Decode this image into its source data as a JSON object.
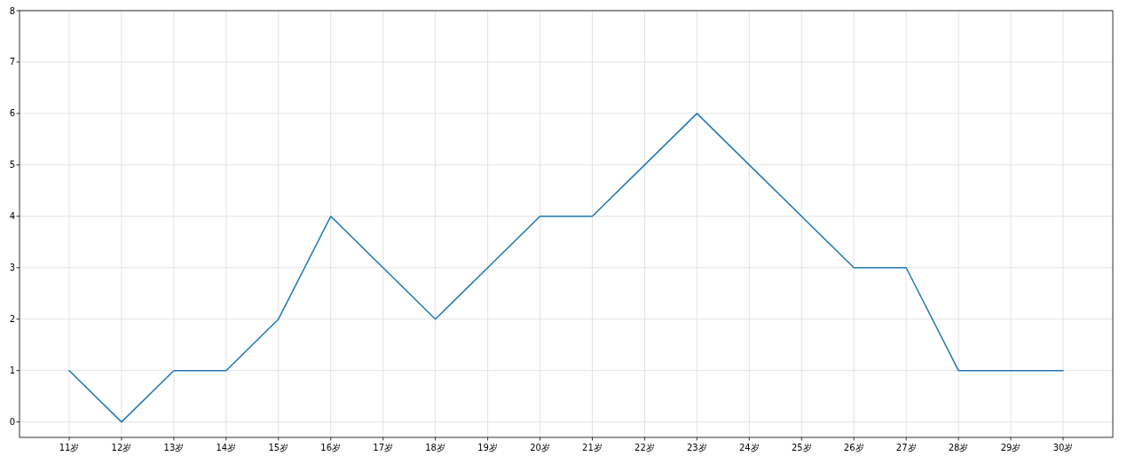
{
  "chart_data": {
    "type": "line",
    "categories": [
      "11岁",
      "12岁",
      "13岁",
      "14岁",
      "15岁",
      "16岁",
      "17岁",
      "18岁",
      "19岁",
      "20岁",
      "21岁",
      "22岁",
      "23岁",
      "24岁",
      "25岁",
      "26岁",
      "27岁",
      "28岁",
      "29岁",
      "30岁"
    ],
    "series": [
      {
        "color": "#1f77b4",
        "values": [
          1,
          0,
          1,
          1,
          2,
          4,
          3,
          2,
          3,
          4,
          4,
          5,
          6,
          5,
          4,
          3,
          3,
          1,
          1,
          1
        ]
      }
    ],
    "ylim": [
      -0.3,
      8
    ],
    "yticks": [
      0,
      1,
      2,
      3,
      4,
      5,
      6,
      7,
      8
    ],
    "grid": true,
    "line_style": "solid",
    "marker": "none"
  }
}
